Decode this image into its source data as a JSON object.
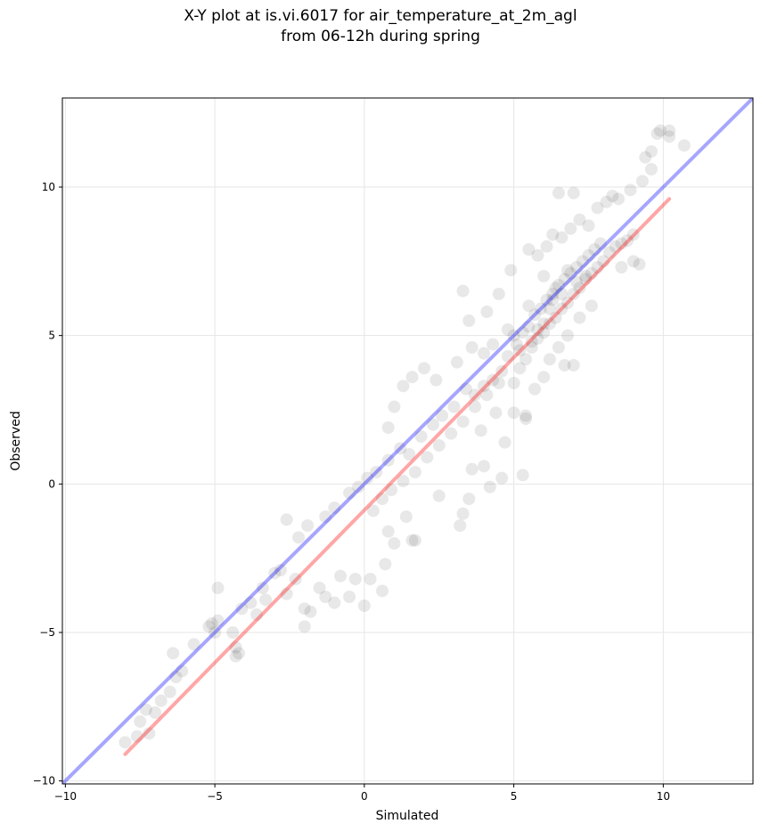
{
  "chart_data": {
    "type": "scatter",
    "title": "X-Y plot at is.vi.6017 for air_temperature_at_2m_agl",
    "subtitle": "from 06-12h during spring",
    "xlabel": "Simulated",
    "ylabel": "Observed",
    "xlim": [
      -10.1,
      13.0
    ],
    "ylim": [
      -10.1,
      13.0
    ],
    "xticks": [
      -10,
      -5,
      0,
      5,
      10
    ],
    "yticks": [
      -10,
      -5,
      0,
      5,
      10
    ],
    "xtick_labels": [
      "−10",
      "−5",
      "0",
      "5",
      "10"
    ],
    "ytick_labels": [
      "−10",
      "−5",
      "0",
      "5",
      "10"
    ],
    "grid": true,
    "point_color": "#000000",
    "point_alpha": 0.09,
    "reference_line": {
      "x": [
        -10.1,
        13.0
      ],
      "y": [
        -10.1,
        13.0
      ],
      "color": "#0000ff"
    },
    "fit_line": {
      "x": [
        -8.0,
        10.2
      ],
      "y": [
        -9.1,
        9.6
      ],
      "color": "#ff0000"
    },
    "series": [
      {
        "points": [
          [
            -8,
            -8.7
          ],
          [
            -7.6,
            -8.5
          ],
          [
            -7.2,
            -8.4
          ],
          [
            -7.5,
            -8.0
          ],
          [
            -7.0,
            -7.7
          ],
          [
            -7.3,
            -7.6
          ],
          [
            -6.8,
            -7.3
          ],
          [
            -6.5,
            -7.0
          ],
          [
            -6.3,
            -6.5
          ],
          [
            -6.4,
            -5.7
          ],
          [
            -6.1,
            -6.3
          ],
          [
            -5.7,
            -5.4
          ],
          [
            -5.2,
            -4.8
          ],
          [
            -5.0,
            -5.0
          ],
          [
            -5.1,
            -4.7
          ],
          [
            -4.9,
            -4.6
          ],
          [
            -4.9,
            -3.5
          ],
          [
            -4.4,
            -5.0
          ],
          [
            -4.3,
            -5.5
          ],
          [
            -4.3,
            -5.8
          ],
          [
            -4.2,
            -5.7
          ],
          [
            -4.1,
            -4.2
          ],
          [
            -3.8,
            -4.0
          ],
          [
            -3.6,
            -4.4
          ],
          [
            -3.3,
            -3.9
          ],
          [
            -3.4,
            -3.5
          ],
          [
            -3.0,
            -3.0
          ],
          [
            -2.8,
            -2.9
          ],
          [
            -2.6,
            -3.7
          ],
          [
            -2.3,
            -3.2
          ],
          [
            -2.0,
            -4.8
          ],
          [
            -2.0,
            -4.2
          ],
          [
            -1.8,
            -4.3
          ],
          [
            -1.5,
            -3.5
          ],
          [
            -1.3,
            -3.8
          ],
          [
            -1.0,
            -4.0
          ],
          [
            -0.8,
            -3.1
          ],
          [
            -0.5,
            -3.8
          ],
          [
            -0.3,
            -3.2
          ],
          [
            0.0,
            -4.1
          ],
          [
            0.2,
            -3.2
          ],
          [
            0.6,
            -3.6
          ],
          [
            0.7,
            -2.7
          ],
          [
            0.8,
            -1.6
          ],
          [
            1.0,
            -2.0
          ],
          [
            1.4,
            -1.1
          ],
          [
            1.6,
            -1.9
          ],
          [
            -2.6,
            -1.2
          ],
          [
            -2.2,
            -1.8
          ],
          [
            -1.9,
            -1.4
          ],
          [
            -1.3,
            -1.1
          ],
          [
            -1.0,
            -0.8
          ],
          [
            -0.5,
            -0.3
          ],
          [
            -0.2,
            -0.1
          ],
          [
            0.1,
            0.2
          ],
          [
            0.4,
            0.4
          ],
          [
            0.8,
            0.8
          ],
          [
            1.2,
            1.2
          ],
          [
            1.5,
            1.0
          ],
          [
            1.9,
            1.6
          ],
          [
            2.3,
            2.0
          ],
          [
            2.6,
            2.3
          ],
          [
            3.0,
            2.6
          ],
          [
            3.4,
            3.2
          ],
          [
            0.3,
            -0.9
          ],
          [
            0.6,
            -0.5
          ],
          [
            0.9,
            -0.2
          ],
          [
            1.3,
            0.1
          ],
          [
            1.7,
            0.4
          ],
          [
            2.1,
            0.9
          ],
          [
            2.5,
            1.3
          ],
          [
            2.9,
            1.7
          ],
          [
            3.3,
            2.1
          ],
          [
            3.7,
            2.6
          ],
          [
            4.1,
            3.0
          ],
          [
            4.5,
            3.4
          ],
          [
            0.8,
            1.9
          ],
          [
            1.0,
            2.6
          ],
          [
            1.3,
            3.3
          ],
          [
            1.6,
            3.6
          ],
          [
            2.0,
            3.9
          ],
          [
            2.4,
            3.5
          ],
          [
            3.1,
            4.1
          ],
          [
            3.6,
            4.6
          ],
          [
            3.5,
            5.5
          ],
          [
            3.3,
            6.5
          ],
          [
            3.6,
            0.5
          ],
          [
            4.2,
            -0.1
          ],
          [
            4.0,
            0.6
          ],
          [
            3.5,
            -0.5
          ],
          [
            3.3,
            -1.0
          ],
          [
            3.2,
            -1.4
          ],
          [
            4.6,
            0.2
          ],
          [
            5.3,
            0.3
          ],
          [
            1.7,
            -1.9
          ],
          [
            2.5,
            -0.4
          ],
          [
            4.4,
            2.4
          ],
          [
            5.0,
            2.4
          ],
          [
            5.4,
            2.3
          ],
          [
            4.7,
            1.4
          ],
          [
            3.9,
            1.8
          ],
          [
            4.9,
            7.2
          ],
          [
            4.5,
            6.4
          ],
          [
            4.1,
            5.8
          ],
          [
            5.0,
            3.4
          ],
          [
            5.2,
            3.9
          ],
          [
            5.4,
            4.2
          ],
          [
            5.6,
            4.6
          ],
          [
            5.8,
            4.9
          ],
          [
            6.0,
            5.1
          ],
          [
            6.2,
            5.4
          ],
          [
            6.4,
            5.6
          ],
          [
            6.6,
            5.9
          ],
          [
            6.8,
            6.1
          ],
          [
            7.0,
            6.4
          ],
          [
            7.2,
            6.6
          ],
          [
            7.4,
            6.9
          ],
          [
            7.6,
            7.1
          ],
          [
            7.8,
            7.3
          ],
          [
            8.0,
            7.5
          ],
          [
            8.2,
            7.8
          ],
          [
            8.4,
            8.0
          ],
          [
            8.6,
            8.1
          ],
          [
            8.8,
            8.2
          ],
          [
            9.0,
            8.4
          ],
          [
            5.1,
            4.7
          ],
          [
            5.3,
            5.1
          ],
          [
            5.5,
            5.3
          ],
          [
            5.7,
            5.7
          ],
          [
            5.9,
            5.9
          ],
          [
            6.1,
            6.2
          ],
          [
            6.3,
            6.4
          ],
          [
            6.5,
            6.7
          ],
          [
            6.7,
            6.9
          ],
          [
            6.9,
            7.1
          ],
          [
            7.1,
            7.3
          ],
          [
            7.3,
            7.5
          ],
          [
            7.5,
            7.7
          ],
          [
            7.7,
            7.9
          ],
          [
            7.9,
            8.1
          ],
          [
            5.5,
            7.9
          ],
          [
            5.8,
            7.7
          ],
          [
            6.1,
            8.0
          ],
          [
            6.3,
            8.4
          ],
          [
            6.6,
            8.3
          ],
          [
            6.9,
            8.6
          ],
          [
            7.2,
            8.9
          ],
          [
            7.5,
            8.7
          ],
          [
            7.8,
            9.3
          ],
          [
            8.1,
            9.5
          ],
          [
            8.3,
            9.7
          ],
          [
            6.5,
            9.8
          ],
          [
            7.0,
            9.8
          ],
          [
            8.5,
            9.6
          ],
          [
            8.9,
            9.9
          ],
          [
            9.3,
            10.2
          ],
          [
            9.6,
            10.6
          ],
          [
            9.8,
            11.8
          ],
          [
            9.9,
            11.9
          ],
          [
            10.2,
            11.9
          ],
          [
            10.2,
            11.7
          ],
          [
            10.7,
            11.4
          ],
          [
            9.6,
            11.2
          ],
          [
            9.4,
            11.0
          ],
          [
            8.6,
            7.3
          ],
          [
            9.0,
            7.5
          ],
          [
            9.2,
            7.4
          ],
          [
            7.6,
            6.0
          ],
          [
            7.2,
            5.6
          ],
          [
            6.8,
            5.0
          ],
          [
            6.5,
            4.6
          ],
          [
            6.2,
            4.2
          ],
          [
            6.0,
            3.6
          ],
          [
            5.7,
            3.2
          ],
          [
            5.4,
            2.2
          ],
          [
            6.7,
            4.0
          ],
          [
            7.0,
            4.0
          ],
          [
            5.0,
            5.0
          ],
          [
            5.5,
            6.0
          ],
          [
            6.0,
            7.0
          ],
          [
            6.3,
            6.2
          ],
          [
            6.6,
            6.4
          ],
          [
            6.2,
            5.9
          ],
          [
            6.4,
            6.6
          ],
          [
            6.8,
            7.2
          ],
          [
            7.1,
            6.8
          ],
          [
            7.4,
            7.0
          ],
          [
            6.0,
            5.4
          ],
          [
            5.8,
            5.2
          ],
          [
            5.6,
            4.8
          ],
          [
            5.2,
            4.5
          ],
          [
            4.8,
            4.3
          ],
          [
            4.6,
            3.8
          ],
          [
            4.3,
            3.5
          ],
          [
            4.0,
            3.3
          ],
          [
            3.7,
            3.0
          ],
          [
            4.8,
            5.2
          ],
          [
            4.3,
            4.7
          ],
          [
            4.0,
            4.4
          ]
        ]
      }
    ]
  }
}
